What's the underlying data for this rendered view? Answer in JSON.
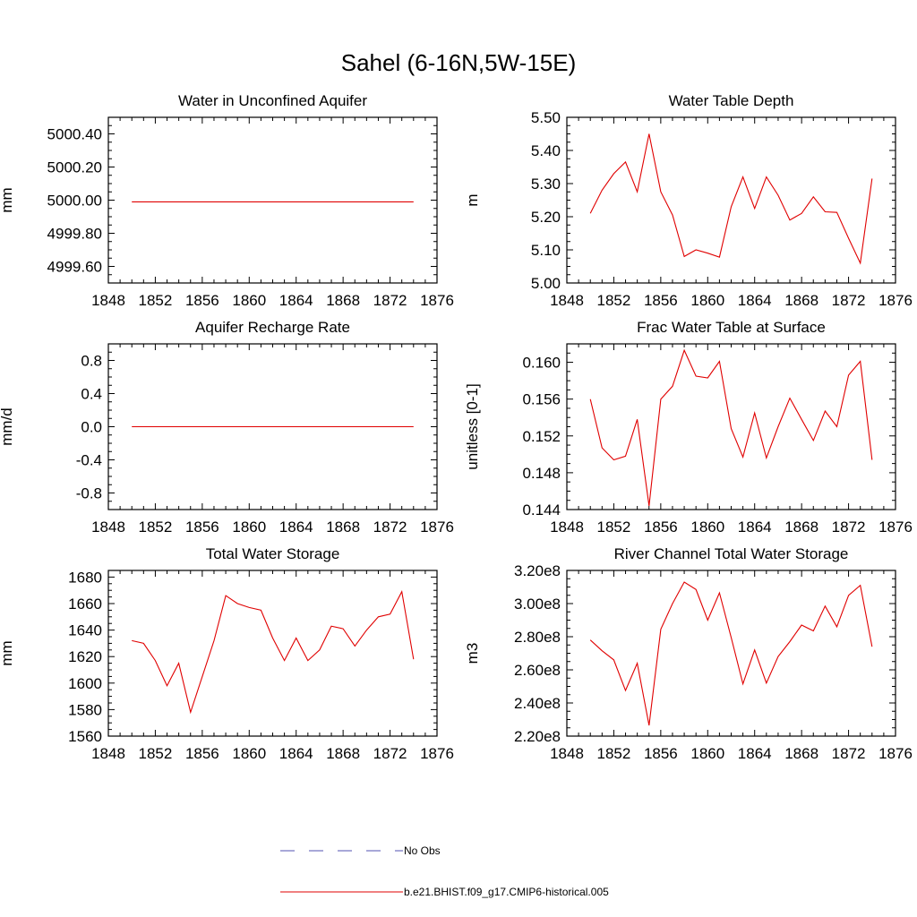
{
  "title": "Sahel (6-16N,5W-15E)",
  "legend": [
    {
      "label": "No Obs",
      "color": "#5050b0",
      "dash": true
    },
    {
      "label": "b.e21.BHIST.f09_g17.CMIP6-historical.005",
      "color": "#e00000",
      "dash": false
    }
  ],
  "chart_data": [
    {
      "type": "line",
      "title": "Water in Unconfined Aquifer",
      "ylabel": "mm",
      "xlim": [
        1848,
        1876
      ],
      "xticks": [
        1848,
        1852,
        1856,
        1860,
        1864,
        1868,
        1872,
        1876
      ],
      "ylim": [
        4999.5,
        5000.5
      ],
      "yticks": [
        4999.6,
        4999.8,
        5000.0,
        5000.2,
        5000.4
      ],
      "ytick_labels": [
        "4999.60",
        "4999.80",
        "5000.00",
        "5000.20",
        "5000.40"
      ],
      "series": [
        {
          "color": "#e00000",
          "x": [
            1850,
            1851,
            1852,
            1853,
            1854,
            1855,
            1856,
            1857,
            1858,
            1859,
            1860,
            1861,
            1862,
            1863,
            1864,
            1865,
            1866,
            1867,
            1868,
            1869,
            1870,
            1871,
            1872,
            1873,
            1874
          ],
          "values": [
            4999.99,
            4999.99,
            4999.99,
            4999.99,
            4999.99,
            4999.99,
            4999.99,
            4999.99,
            4999.99,
            4999.99,
            4999.99,
            4999.99,
            4999.99,
            4999.99,
            4999.99,
            4999.99,
            4999.99,
            4999.99,
            4999.99,
            4999.99,
            4999.99,
            4999.99,
            4999.99,
            4999.99,
            4999.99
          ]
        }
      ]
    },
    {
      "type": "line",
      "title": "Water Table Depth",
      "ylabel": "m",
      "xlim": [
        1848,
        1876
      ],
      "xticks": [
        1848,
        1852,
        1856,
        1860,
        1864,
        1868,
        1872,
        1876
      ],
      "ylim": [
        5.0,
        5.5
      ],
      "yticks": [
        5.0,
        5.1,
        5.2,
        5.3,
        5.4,
        5.5
      ],
      "ytick_labels": [
        "5.00",
        "5.10",
        "5.20",
        "5.30",
        "5.40",
        "5.50"
      ],
      "series": [
        {
          "color": "#e00000",
          "x": [
            1850,
            1851,
            1852,
            1853,
            1854,
            1855,
            1856,
            1857,
            1858,
            1859,
            1860,
            1861,
            1862,
            1863,
            1864,
            1865,
            1866,
            1867,
            1868,
            1869,
            1870,
            1871,
            1872,
            1873,
            1874
          ],
          "values": [
            5.21,
            5.28,
            5.33,
            5.365,
            5.275,
            5.45,
            5.275,
            5.205,
            5.08,
            5.1,
            5.09,
            5.078,
            5.23,
            5.32,
            5.225,
            5.32,
            5.265,
            5.19,
            5.21,
            5.26,
            5.215,
            5.213,
            5.135,
            5.06,
            5.315
          ]
        }
      ]
    },
    {
      "type": "line",
      "title": "Aquifer Recharge Rate",
      "ylabel": "mm/d",
      "xlim": [
        1848,
        1876
      ],
      "xticks": [
        1848,
        1852,
        1856,
        1860,
        1864,
        1868,
        1872,
        1876
      ],
      "ylim": [
        -1.0,
        1.0
      ],
      "yticks": [
        -0.8,
        -0.4,
        0.0,
        0.4,
        0.8
      ],
      "ytick_labels": [
        "-0.8",
        "-0.4",
        "0.0",
        "0.4",
        "0.8"
      ],
      "series": [
        {
          "color": "#e00000",
          "x": [
            1850,
            1851,
            1852,
            1853,
            1854,
            1855,
            1856,
            1857,
            1858,
            1859,
            1860,
            1861,
            1862,
            1863,
            1864,
            1865,
            1866,
            1867,
            1868,
            1869,
            1870,
            1871,
            1872,
            1873,
            1874
          ],
          "values": [
            0,
            0,
            0,
            0,
            0,
            0,
            0,
            0,
            0,
            0,
            0,
            0,
            0,
            0,
            0,
            0,
            0,
            0,
            0,
            0,
            0,
            0,
            0,
            0,
            0
          ]
        }
      ]
    },
    {
      "type": "line",
      "title": "Frac Water Table at Surface",
      "ylabel": "unitless [0-1]",
      "xlim": [
        1848,
        1876
      ],
      "xticks": [
        1848,
        1852,
        1856,
        1860,
        1864,
        1868,
        1872,
        1876
      ],
      "ylim": [
        0.144,
        0.162
      ],
      "yticks": [
        0.144,
        0.148,
        0.152,
        0.156,
        0.16
      ],
      "ytick_labels": [
        "0.144",
        "0.148",
        "0.152",
        "0.156",
        "0.160"
      ],
      "series": [
        {
          "color": "#e00000",
          "x": [
            1850,
            1851,
            1852,
            1853,
            1854,
            1855,
            1856,
            1857,
            1858,
            1859,
            1860,
            1861,
            1862,
            1863,
            1864,
            1865,
            1866,
            1867,
            1868,
            1869,
            1870,
            1871,
            1872,
            1873,
            1874
          ],
          "values": [
            0.156,
            0.1507,
            0.1494,
            0.1498,
            0.1538,
            0.1444,
            0.156,
            0.1574,
            0.1613,
            0.1585,
            0.1583,
            0.1601,
            0.1528,
            0.1497,
            0.1545,
            0.1496,
            0.153,
            0.1561,
            0.1538,
            0.1515,
            0.1547,
            0.153,
            0.1586,
            0.1601,
            0.1494
          ]
        }
      ]
    },
    {
      "type": "line",
      "title": "Total Water Storage",
      "ylabel": "mm",
      "xlim": [
        1848,
        1876
      ],
      "xticks": [
        1848,
        1852,
        1856,
        1860,
        1864,
        1868,
        1872,
        1876
      ],
      "ylim": [
        1560,
        1685
      ],
      "yticks": [
        1560,
        1580,
        1600,
        1620,
        1640,
        1660,
        1680
      ],
      "ytick_labels": [
        "1560",
        "1580",
        "1600",
        "1620",
        "1640",
        "1660",
        "1680"
      ],
      "series": [
        {
          "color": "#e00000",
          "x": [
            1850,
            1851,
            1852,
            1853,
            1854,
            1855,
            1856,
            1857,
            1858,
            1859,
            1860,
            1861,
            1862,
            1863,
            1864,
            1865,
            1866,
            1867,
            1868,
            1869,
            1870,
            1871,
            1872,
            1873,
            1874
          ],
          "values": [
            1632,
            1630,
            1617,
            1598,
            1615,
            1578,
            1605,
            1632,
            1666,
            1660,
            1657,
            1655,
            1634,
            1617,
            1634,
            1617,
            1625,
            1643,
            1641,
            1628,
            1640,
            1650,
            1652,
            1669,
            1618
          ]
        }
      ]
    },
    {
      "type": "line",
      "title": "River Channel Total Water Storage",
      "ylabel": "m3",
      "xlim": [
        1848,
        1876
      ],
      "xticks": [
        1848,
        1852,
        1856,
        1860,
        1864,
        1868,
        1872,
        1876
      ],
      "ylim": [
        220000000.0,
        320000000.0
      ],
      "yticks": [
        220000000.0,
        240000000.0,
        260000000.0,
        280000000.0,
        300000000.0,
        320000000.0
      ],
      "ytick_labels": [
        "2.20e8",
        "2.40e8",
        "2.60e8",
        "2.80e8",
        "3.00e8",
        "3.20e8"
      ],
      "series": [
        {
          "color": "#e00000",
          "x": [
            1850,
            1851,
            1852,
            1853,
            1854,
            1855,
            1856,
            1857,
            1858,
            1859,
            1860,
            1861,
            1862,
            1863,
            1864,
            1865,
            1866,
            1867,
            1868,
            1869,
            1870,
            1871,
            1872,
            1873,
            1874
          ],
          "values": [
            278000000.0,
            271500000.0,
            266000000.0,
            247500000.0,
            264000000.0,
            226500000.0,
            284500000.0,
            300000000.0,
            313000000.0,
            308500000.0,
            290000000.0,
            306500000.0,
            279500000.0,
            251500000.0,
            272000000.0,
            252000000.0,
            268000000.0,
            277000000.0,
            287000000.0,
            283500000.0,
            298500000.0,
            286000000.0,
            305000000.0,
            311000000.0,
            274000000.0
          ]
        }
      ]
    }
  ]
}
